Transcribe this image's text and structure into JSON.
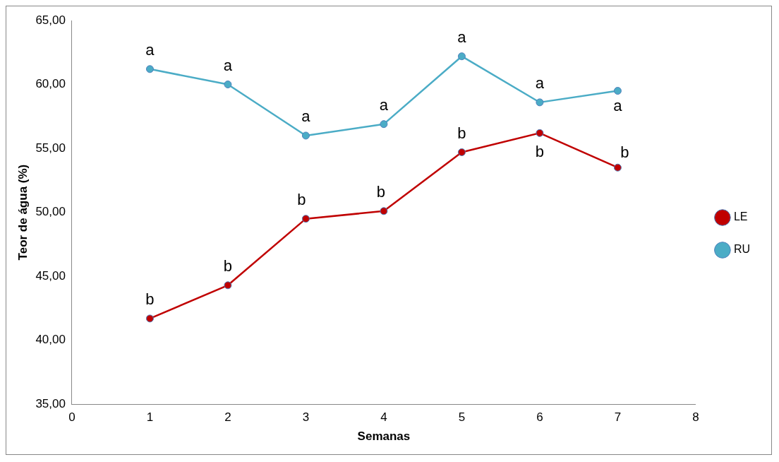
{
  "chart_data": {
    "type": "line",
    "xlabel": "Semanas",
    "ylabel": "Teor de água (%)",
    "xlim": [
      0,
      8
    ],
    "xticks": [
      0,
      1,
      2,
      3,
      4,
      5,
      6,
      7,
      8
    ],
    "ylim": [
      35,
      65
    ],
    "yticks": [
      {
        "value": 35,
        "label": "35,00"
      },
      {
        "value": 40,
        "label": "40,00"
      },
      {
        "value": 45,
        "label": "45,00"
      },
      {
        "value": 50,
        "label": "50,00"
      },
      {
        "value": 55,
        "label": "55,00"
      },
      {
        "value": 60,
        "label": "60,00"
      },
      {
        "value": 65,
        "label": "65,00"
      }
    ],
    "x": [
      1,
      2,
      3,
      4,
      5,
      6,
      7
    ],
    "series": [
      {
        "name": "LE",
        "color": "#c00000",
        "values": [
          41.7,
          44.3,
          49.5,
          50.1,
          54.7,
          56.2,
          53.5
        ]
      },
      {
        "name": "RU",
        "color": "#4bacc6",
        "values": [
          61.2,
          60.0,
          56.0,
          56.9,
          62.2,
          58.6,
          59.5
        ]
      }
    ],
    "annotations": [
      {
        "text": "a",
        "x": 1,
        "y": 61.2
      },
      {
        "text": "a",
        "x": 2,
        "y": 60.0
      },
      {
        "text": "a",
        "x": 3,
        "y": 56.0
      },
      {
        "text": "a",
        "x": 4,
        "y": 56.9
      },
      {
        "text": "a",
        "x": 5,
        "y": 62.2
      },
      {
        "text": "a",
        "x": 6,
        "y": 58.6
      },
      {
        "text": "a",
        "x": 7,
        "y": 59.5
      },
      {
        "text": "b",
        "x": 1,
        "y": 41.7
      },
      {
        "text": "b",
        "x": 2,
        "y": 44.3
      },
      {
        "text": "b",
        "x": 3,
        "y": 49.5
      },
      {
        "text": "b",
        "x": 4,
        "y": 50.1
      },
      {
        "text": "b",
        "x": 5,
        "y": 54.7
      },
      {
        "text": "b",
        "x": 6,
        "y": 56.2
      },
      {
        "text": "b",
        "x": 7,
        "y": 53.5
      }
    ],
    "grid": false,
    "legend": "right",
    "marker": "circle",
    "line_style": "solid"
  }
}
